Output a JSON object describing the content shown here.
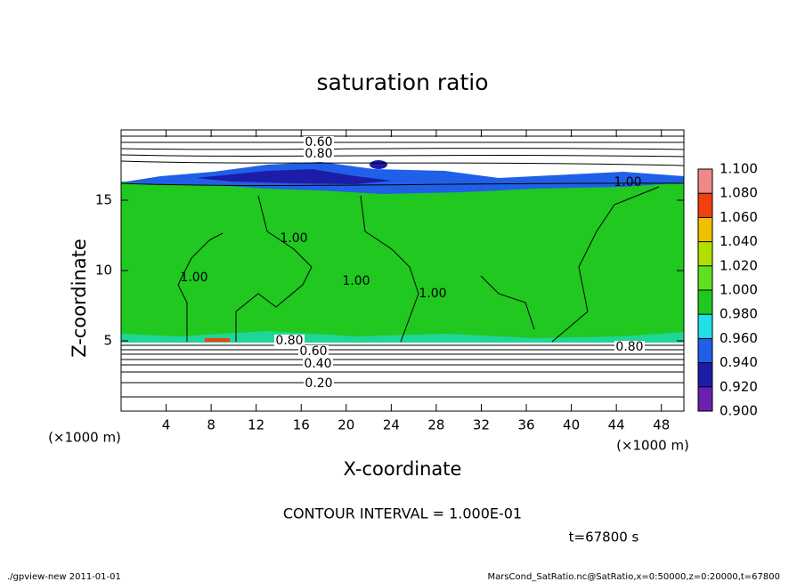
{
  "chart_data": {
    "type": "contour",
    "title": "saturation ratio",
    "xlabel": "X-coordinate",
    "ylabel": "Z-coordinate",
    "x_unit": "(×1000 m)",
    "y_unit": "(×1000 m)",
    "xlim": [
      0,
      50
    ],
    "xticks": [
      4,
      8,
      12,
      16,
      20,
      24,
      28,
      32,
      36,
      40,
      44,
      48
    ],
    "ylim": [
      0,
      20
    ],
    "yticks": [
      5,
      10,
      15
    ],
    "contour_labels": [
      "0.60",
      "0.80",
      "1.00",
      "1.00",
      "1.00",
      "1.00",
      "1.00",
      "0.80",
      "0.60",
      "0.40",
      "0.20",
      "0.80"
    ],
    "colorbar": {
      "clim": [
        0.9,
        1.1
      ],
      "ticks": [
        {
          "value": 0.9,
          "label": "0.900"
        },
        {
          "value": 0.92,
          "label": "0.920"
        },
        {
          "value": 0.94,
          "label": "0.940"
        },
        {
          "value": 0.96,
          "label": "0.960"
        },
        {
          "value": 0.98,
          "label": "0.980"
        },
        {
          "value": 1.0,
          "label": "1.000"
        },
        {
          "value": 1.02,
          "label": "1.020"
        },
        {
          "value": 1.04,
          "label": "1.040"
        },
        {
          "value": 1.06,
          "label": "1.060"
        },
        {
          "value": 1.08,
          "label": "1.080"
        },
        {
          "value": 1.1,
          "label": "1.100"
        }
      ],
      "colors": [
        "#6a1fb0",
        "#1c1ca8",
        "#2060e8",
        "#20e0e8",
        "#20c820",
        "#60e020",
        "#b0e000",
        "#f0c000",
        "#f04010",
        "#f08888"
      ]
    },
    "contour_interval": "CONTOUR INTERVAL = 1.000E-01",
    "time_label": "t=67800 s",
    "footer_left": "./gpview-new  2011-01-01",
    "footer_right": "MarsCond_SatRatio.nc@SatRatio,x=0:50000,z=0:20000,t=67800"
  }
}
